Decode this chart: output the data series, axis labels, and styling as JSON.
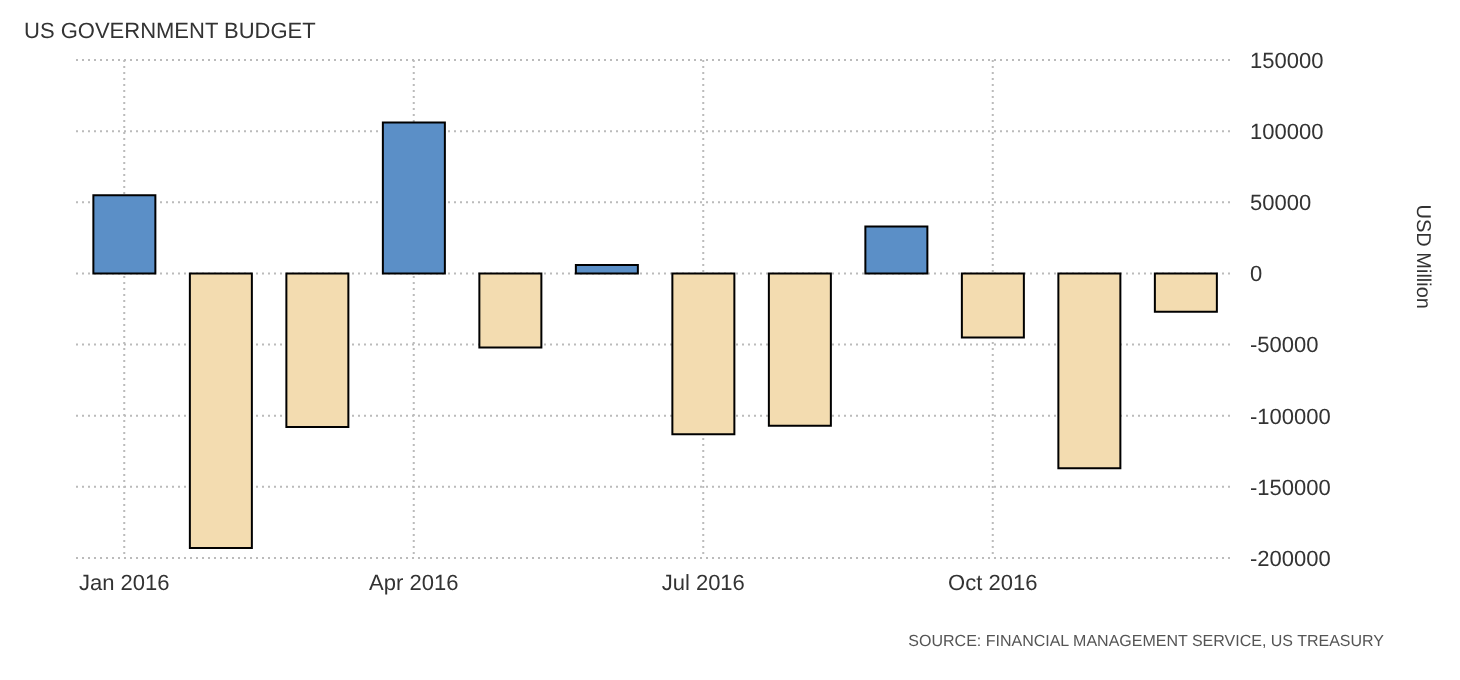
{
  "chart_data": {
    "type": "bar",
    "title": "US GOVERNMENT BUDGET",
    "ylabel": "USD Million",
    "categories": [
      "Jan 2016",
      null,
      null,
      "Apr 2016",
      null,
      null,
      "Jul 2016",
      null,
      null,
      "Oct 2016",
      null,
      null
    ],
    "values": [
      55000,
      -193000,
      -108000,
      106000,
      -52000,
      6000,
      -113000,
      -107000,
      33000,
      -45000,
      -137000,
      -27000
    ],
    "colors": [
      "#5b8fc7",
      "#f3dcb0",
      "#f3dcb0",
      "#5b8fc7",
      "#f3dcb0",
      "#5b8fc7",
      "#f3dcb0",
      "#f3dcb0",
      "#5b8fc7",
      "#f3dcb0",
      "#f3dcb0",
      "#f3dcb0"
    ],
    "ylim": [
      -200000,
      150000
    ],
    "yticks": [
      -200000,
      -150000,
      -100000,
      -50000,
      0,
      50000,
      100000,
      150000
    ],
    "grid": true,
    "annotations": [
      "SOURCE: FINANCIAL MANAGEMENT SERVICE, US TREASURY"
    ]
  }
}
